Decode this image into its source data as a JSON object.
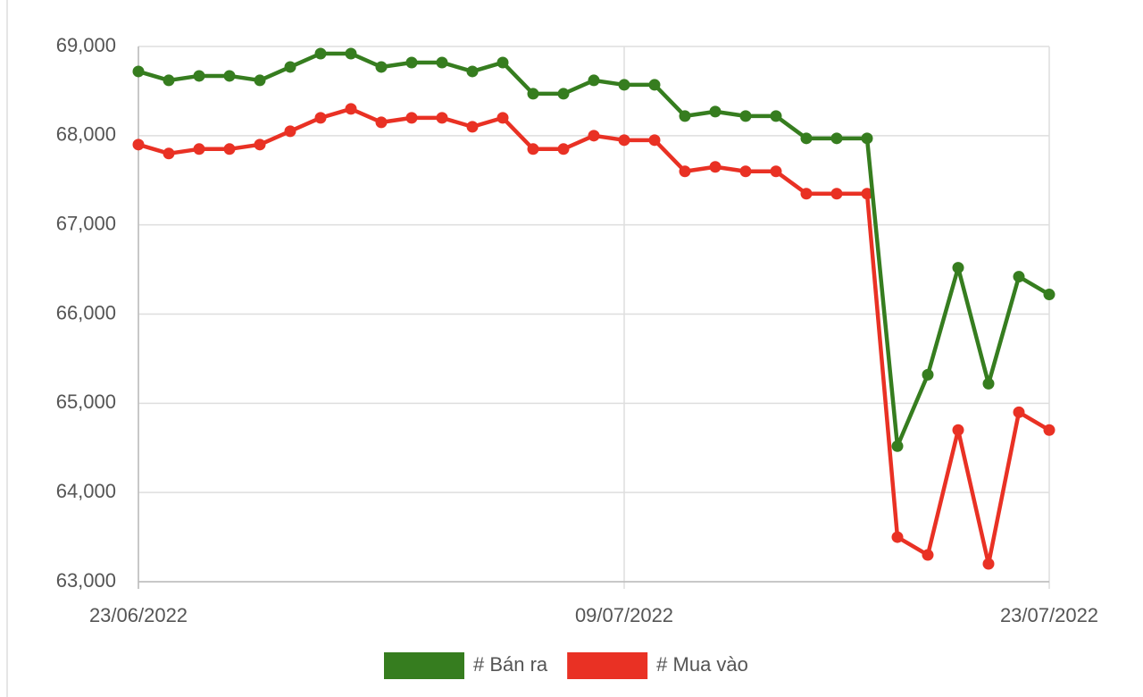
{
  "chart_data": {
    "type": "line",
    "categories": [
      "23/06/2022",
      null,
      null,
      null,
      null,
      null,
      null,
      null,
      null,
      null,
      null,
      null,
      null,
      null,
      null,
      null,
      "09/07/2022",
      null,
      null,
      null,
      null,
      null,
      null,
      null,
      null,
      null,
      null,
      null,
      null,
      null,
      "23/07/2022"
    ],
    "series": [
      {
        "name": "# Bán ra",
        "color": "#367d1f",
        "values": [
          68720,
          68620,
          68670,
          68670,
          68620,
          68770,
          68920,
          68920,
          68770,
          68820,
          68820,
          68720,
          68820,
          68470,
          68470,
          68620,
          68570,
          68570,
          68220,
          68270,
          68220,
          68220,
          67970,
          67970,
          67970,
          64520,
          65320,
          66520,
          65220,
          66420,
          66220
        ]
      },
      {
        "name": "# Mua vào",
        "color": "#e93124",
        "values": [
          67900,
          67800,
          67850,
          67850,
          67900,
          68050,
          68200,
          68300,
          68150,
          68200,
          68200,
          68100,
          68200,
          67850,
          67850,
          68000,
          67950,
          67950,
          67600,
          67650,
          67600,
          67600,
          67350,
          67350,
          67350,
          63500,
          63300,
          64700,
          63200,
          64900,
          64700
        ]
      }
    ],
    "ylim": [
      63000,
      69000
    ],
    "yticks": [
      {
        "value": 63000,
        "label": "63,000"
      },
      {
        "value": 64000,
        "label": "64,000"
      },
      {
        "value": 65000,
        "label": "65,000"
      },
      {
        "value": 66000,
        "label": "66,000"
      },
      {
        "value": 67000,
        "label": "67,000"
      },
      {
        "value": 68000,
        "label": "68,000"
      },
      {
        "value": 69000,
        "label": "69,000"
      }
    ],
    "grid": true,
    "legend": "bottom"
  }
}
